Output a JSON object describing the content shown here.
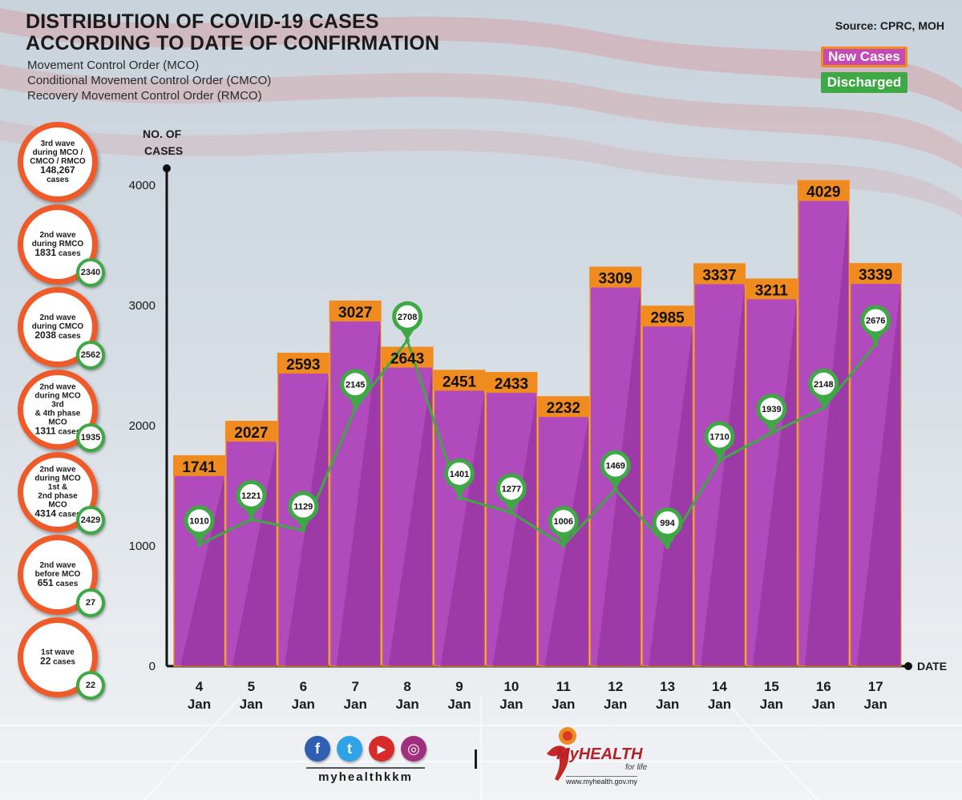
{
  "title_line1": "DISTRIBUTION OF COVID-19 CASES",
  "title_line2": "ACCORDING TO DATE OF CONFIRMATION",
  "subtitle_lines": [
    "Movement Control Order (MCO)",
    "Conditional Movement Control Order (CMCO)",
    "Recovery Movement Control Order (RMCO)"
  ],
  "source": "Source: CPRC, MOH",
  "legend": {
    "new_cases": "New Cases",
    "discharged": "Discharged"
  },
  "colors": {
    "bar_purple": "#b14bbd",
    "bar_dark": "#8e2e98",
    "bar_cap": "#f08b1f",
    "line_green": "#3da844",
    "wave_orange": "#ef5a28"
  },
  "waves": [
    {
      "lines": [
        "3rd wave",
        "during MCO /",
        "CMCO / RMCO"
      ],
      "count": "148,267",
      "unit": "cases",
      "badge": ""
    },
    {
      "lines": [
        "2nd wave",
        "during RMCO"
      ],
      "count": "1831",
      "unit": "cases",
      "badge": "2340"
    },
    {
      "lines": [
        "2nd wave",
        "during CMCO"
      ],
      "count": "2038",
      "unit": "cases",
      "badge": "2562"
    },
    {
      "lines": [
        "2nd wave",
        "during MCO 3rd",
        "& 4th phase MCO"
      ],
      "count": "1311",
      "unit": "cases",
      "badge": "1935"
    },
    {
      "lines": [
        "2nd wave",
        "during MCO 1st &",
        "2nd phase MCO"
      ],
      "count": "4314",
      "unit": "cases",
      "badge": "2429"
    },
    {
      "lines": [
        "2nd wave",
        "before MCO"
      ],
      "count": "651",
      "unit": "cases",
      "badge": "27"
    },
    {
      "lines": [
        "1st wave"
      ],
      "count": "22",
      "unit": "cases",
      "badge": "22"
    }
  ],
  "chart_data": {
    "type": "bar",
    "title": "Distribution of COVID-19 cases according to date of confirmation",
    "ylabel_lines": [
      "NO. OF",
      "CASES"
    ],
    "xlabel": "DATE",
    "ylim": [
      0,
      4000
    ],
    "yticks": [
      0,
      1000,
      2000,
      3000,
      4000
    ],
    "categories": [
      [
        "4",
        "Jan"
      ],
      [
        "5",
        "Jan"
      ],
      [
        "6",
        "Jan"
      ],
      [
        "7",
        "Jan"
      ],
      [
        "8",
        "Jan"
      ],
      [
        "9",
        "Jan"
      ],
      [
        "10",
        "Jan"
      ],
      [
        "11",
        "Jan"
      ],
      [
        "12",
        "Jan"
      ],
      [
        "13",
        "Jan"
      ],
      [
        "14",
        "Jan"
      ],
      [
        "15",
        "Jan"
      ],
      [
        "16",
        "Jan"
      ],
      [
        "17",
        "Jan"
      ]
    ],
    "series": [
      {
        "name": "New Cases",
        "type": "bar",
        "values": [
          1741,
          2027,
          2593,
          3027,
          2643,
          2451,
          2433,
          2232,
          3309,
          2985,
          3337,
          3211,
          4029,
          3339
        ]
      },
      {
        "name": "Discharged",
        "type": "line",
        "values": [
          1010,
          1221,
          1129,
          2145,
          2708,
          1401,
          1277,
          1006,
          1469,
          994,
          1710,
          1939,
          2148,
          2676
        ]
      }
    ]
  },
  "footer": {
    "social_icons": [
      "facebook-icon",
      "twitter-icon",
      "youtube-icon",
      "instagram-icon"
    ],
    "social_glyphs": [
      "f",
      "t",
      "▶",
      "◎"
    ],
    "handle": "myhealthkkm",
    "logo_my": "My",
    "logo_health": "HEALTH",
    "logo_tagline": "for life",
    "logo_url": "www.myhealth.gov.my"
  }
}
